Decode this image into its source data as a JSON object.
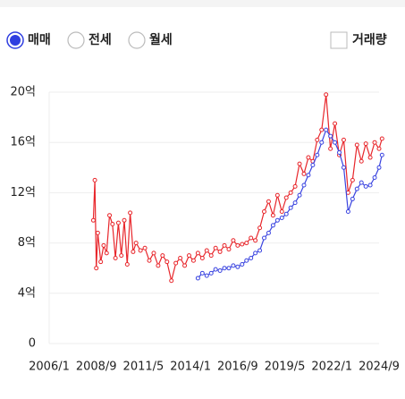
{
  "controls": {
    "extra_option": "월세",
    "checkbox": "거래량"
  },
  "chart_data": {
    "type": "line",
    "xlim": [
      "2006/1",
      "2024/9"
    ],
    "xticks": [
      "2006/1",
      "2008/9",
      "2011/5",
      "2014/1",
      "2016/9",
      "2019/5",
      "2022/1",
      "2024/9"
    ],
    "ylim": [
      0,
      20
    ],
    "yticks": [
      0,
      {
        "value": 4,
        "label": "4억"
      },
      {
        "value": 8,
        "label": "8억"
      },
      {
        "value": 12,
        "label": "12억"
      },
      {
        "value": 16,
        "label": "16억"
      },
      {
        "value": 20,
        "label": "20억"
      }
    ],
    "grid": true,
    "series": [
      {
        "name": "매매",
        "color": "#e8262b",
        "x": [
          "2008/7",
          "2008/8",
          "2008/9",
          "2008/10",
          "2008/12",
          "2009/2",
          "2009/4",
          "2009/6",
          "2009/8",
          "2009/10",
          "2009/12",
          "2010/2",
          "2010/4",
          "2010/6",
          "2010/8",
          "2010/10",
          "2010/12",
          "2011/3",
          "2011/6",
          "2011/9",
          "2011/12",
          "2012/3",
          "2012/6",
          "2012/9",
          "2012/12",
          "2013/3",
          "2013/6",
          "2013/9",
          "2013/12",
          "2014/3",
          "2014/6",
          "2014/9",
          "2014/12",
          "2015/3",
          "2015/6",
          "2015/9",
          "2015/12",
          "2016/3",
          "2016/6",
          "2016/9",
          "2016/12",
          "2017/3",
          "2017/6",
          "2017/9",
          "2017/12",
          "2018/3",
          "2018/6",
          "2018/9",
          "2018/12",
          "2019/3",
          "2019/6",
          "2019/9",
          "2019/12",
          "2020/3",
          "2020/6",
          "2020/9",
          "2020/12",
          "2021/3",
          "2021/6",
          "2021/9",
          "2021/12",
          "2022/3",
          "2022/6",
          "2022/9",
          "2022/12",
          "2023/3",
          "2023/6",
          "2023/9",
          "2023/12",
          "2024/3",
          "2024/6",
          "2024/9",
          "2024/11"
        ],
        "values": [
          9.8,
          13.0,
          6.0,
          8.8,
          6.5,
          7.8,
          7.2,
          10.2,
          9.5,
          6.8,
          9.6,
          7.0,
          9.8,
          6.3,
          10.4,
          7.3,
          8.0,
          7.4,
          7.6,
          6.6,
          7.2,
          6.2,
          7.0,
          6.5,
          5.0,
          6.4,
          6.8,
          6.2,
          7.0,
          6.6,
          7.2,
          6.8,
          7.4,
          7.0,
          7.6,
          7.3,
          7.8,
          7.5,
          8.2,
          7.8,
          7.9,
          8.0,
          8.4,
          8.2,
          9.2,
          10.5,
          11.3,
          10.2,
          11.8,
          10.5,
          11.6,
          12.0,
          12.5,
          14.3,
          13.5,
          14.8,
          14.5,
          16.2,
          17.0,
          19.8,
          15.5,
          17.5,
          15.0,
          16.2,
          12.0,
          13.0,
          15.8,
          14.5,
          15.9,
          14.8,
          16.0,
          15.5,
          16.3
        ]
      },
      {
        "name": "전세",
        "color": "#3a44e0",
        "x": [
          "2014/6",
          "2014/9",
          "2014/12",
          "2015/3",
          "2015/6",
          "2015/9",
          "2015/12",
          "2016/3",
          "2016/6",
          "2016/9",
          "2016/12",
          "2017/3",
          "2017/6",
          "2017/9",
          "2017/12",
          "2018/3",
          "2018/6",
          "2018/9",
          "2018/12",
          "2019/3",
          "2019/6",
          "2019/9",
          "2019/12",
          "2020/3",
          "2020/6",
          "2020/9",
          "2020/12",
          "2021/3",
          "2021/6",
          "2021/9",
          "2021/12",
          "2022/3",
          "2022/6",
          "2022/9",
          "2022/12",
          "2023/3",
          "2023/6",
          "2023/9",
          "2023/12",
          "2024/3",
          "2024/6",
          "2024/9",
          "2024/11"
        ],
        "values": [
          5.2,
          5.6,
          5.4,
          5.6,
          5.9,
          5.8,
          6.0,
          6.0,
          6.2,
          6.1,
          6.3,
          6.6,
          6.8,
          7.2,
          7.4,
          8.4,
          8.8,
          9.4,
          9.8,
          10.0,
          10.3,
          10.8,
          11.2,
          11.8,
          12.6,
          13.4,
          14.2,
          15.0,
          16.0,
          17.0,
          16.5,
          16.0,
          15.2,
          14.0,
          10.5,
          11.5,
          12.3,
          12.8,
          12.5,
          12.6,
          13.2,
          14.0,
          15.0
        ]
      }
    ]
  }
}
